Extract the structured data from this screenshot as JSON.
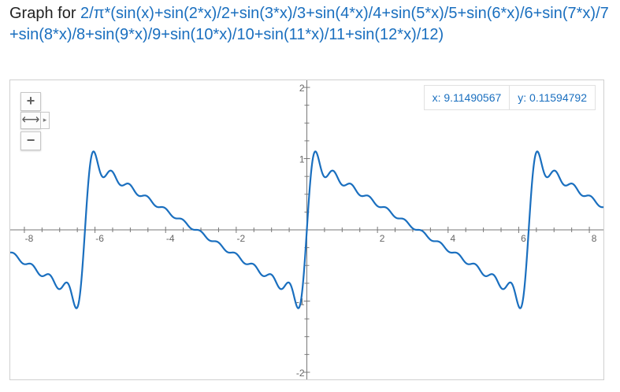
{
  "header": {
    "prefix": "Graph for ",
    "formula": "2/π*(sin(x)+sin(2*x)/2+sin(3*x)/3+sin(4*x)/4+sin(5*x)/5+sin(6*x)/6+sin(7*x)/7+sin(8*x)/8+sin(9*x)/9+sin(10*x)/10+sin(11*x)/11+sin(12*x)/12)"
  },
  "readout": {
    "x": "x: 9.11490567",
    "y": "y: 0.11594792"
  },
  "controls": {
    "zoom_in": "+",
    "pan": "⟷",
    "pan_arrow": "▸",
    "zoom_out": "−"
  },
  "colors": {
    "curve": "#1a6fbf",
    "formula": "#1a6fbf",
    "axis": "#777777"
  },
  "chart_data": {
    "type": "line",
    "expression": "2/π*(sin(x)+sin(2*x)/2+sin(3*x)/3+sin(4*x)/4+sin(5*x)/5+sin(6*x)/6+sin(7*x)/7+sin(8*x)/8+sin(9*x)/9+sin(10*x)/10+sin(11*x)/11+sin(12*x)/12)",
    "terms": 12,
    "xlim": [
      -8.4,
      8.4
    ],
    "ylim": [
      -2.1,
      2.1
    ],
    "x_ticks": [
      "-8",
      "-6",
      "-4",
      "-2",
      "2",
      "4",
      "6",
      "8"
    ],
    "y_ticks": [
      "2",
      "1",
      "-1",
      "-2"
    ],
    "grid": false
  }
}
